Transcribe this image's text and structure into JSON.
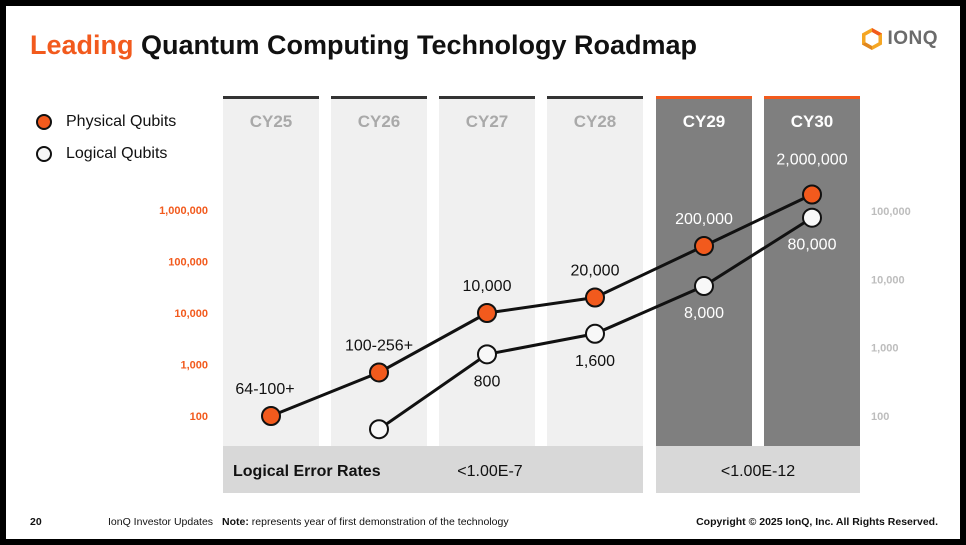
{
  "slide": {
    "title_accent": "Leading",
    "title_rest": "Quantum Computing Technology Roadmap",
    "logo_text": "IONQ",
    "logo_icon": "ionq-hexagon-logo-icon",
    "page_number": "20",
    "source": "IonQ Investor Updates",
    "note_label": "Note:",
    "note_text": "represents year of first demonstration of the technology",
    "copyright": "Copyright © 2025 IonQ, Inc. All Rights Reserved."
  },
  "colors": {
    "accent": "#f25a1d",
    "light_column": "#f0f0f0",
    "dark_column": "#7f7f7f",
    "error_band": "#d8d8d8"
  },
  "chart_data": {
    "type": "line",
    "scale": "log",
    "categories": [
      "CY25",
      "CY26",
      "CY27",
      "CY28",
      "CY29",
      "CY30"
    ],
    "highlighted_categories": [
      "CY29",
      "CY30"
    ],
    "left_axis": {
      "ticks": [
        "100",
        "1,000",
        "10,000",
        "100,000",
        "1,000,000"
      ],
      "tick_values": [
        100,
        1000,
        10000,
        100000,
        1000000
      ]
    },
    "right_axis": {
      "ticks": [
        "100",
        "1,000",
        "10,000",
        "100,000"
      ],
      "tick_values": [
        100,
        1000,
        10000,
        100000
      ]
    },
    "series": [
      {
        "name": "Physical Qubits",
        "axis": "left",
        "color": "#f25a1d",
        "values": [
          100,
          700,
          10000,
          20000,
          200000,
          2000000
        ],
        "labels": [
          "64-100+",
          "100-256+",
          "10,000",
          "20,000",
          "200,000",
          "2,000,000"
        ]
      },
      {
        "name": "Logical Qubits",
        "axis": "right",
        "color": "#ffffff",
        "values": [
          null,
          64,
          800,
          1600,
          8000,
          80000
        ],
        "labels": [
          null,
          null,
          "800",
          "1,600",
          "8,000",
          "80,000"
        ]
      }
    ],
    "error_rates": {
      "label": "Logical Error Rates",
      "groups": [
        {
          "label": "<1.00E-7",
          "span": [
            0,
            3
          ]
        },
        {
          "label": "<1.00E-12",
          "span": [
            4,
            5
          ]
        }
      ]
    }
  }
}
